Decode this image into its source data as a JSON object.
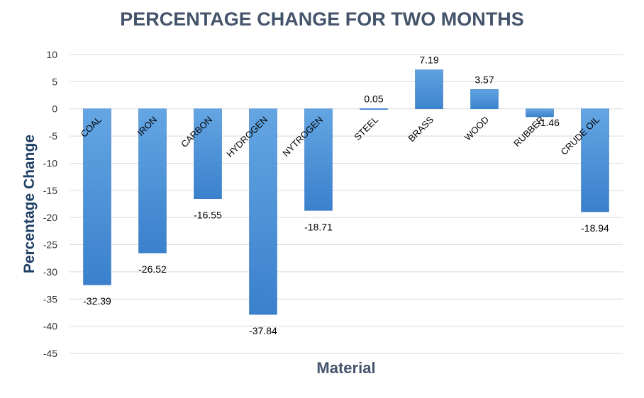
{
  "chart_data": {
    "type": "bar",
    "title": "PERCENTAGE CHANGE FOR TWO MONTHS",
    "xlabel": "Material",
    "ylabel": "Percentage Change",
    "categories": [
      "COAL",
      "IRON",
      "CARBON",
      "HYDROGEN",
      "NYTROGEN",
      "STEEL",
      "BRASS",
      "WOOD",
      "RUBBER",
      "CRUDE OIL"
    ],
    "values": [
      -32.39,
      -26.52,
      -16.55,
      -37.84,
      -18.71,
      0.05,
      7.19,
      3.57,
      -1.46,
      -18.94
    ],
    "data_labels": [
      "-32.39",
      "-26.52",
      "-16.55",
      "-37.84",
      "-18.71",
      "0.05",
      "7.19",
      "3.57",
      "-1.46",
      "-18.94"
    ],
    "y_ticks": [
      "10",
      "5",
      "0",
      "-5",
      "-10",
      "-15",
      "-20",
      "-25",
      "-30",
      "-35",
      "-40",
      "-45"
    ],
    "ylim": [
      -45,
      10
    ],
    "grid": true,
    "legend": "none",
    "bar_color": "#4a8fd4",
    "bar_color_light": "#63a4e0"
  }
}
